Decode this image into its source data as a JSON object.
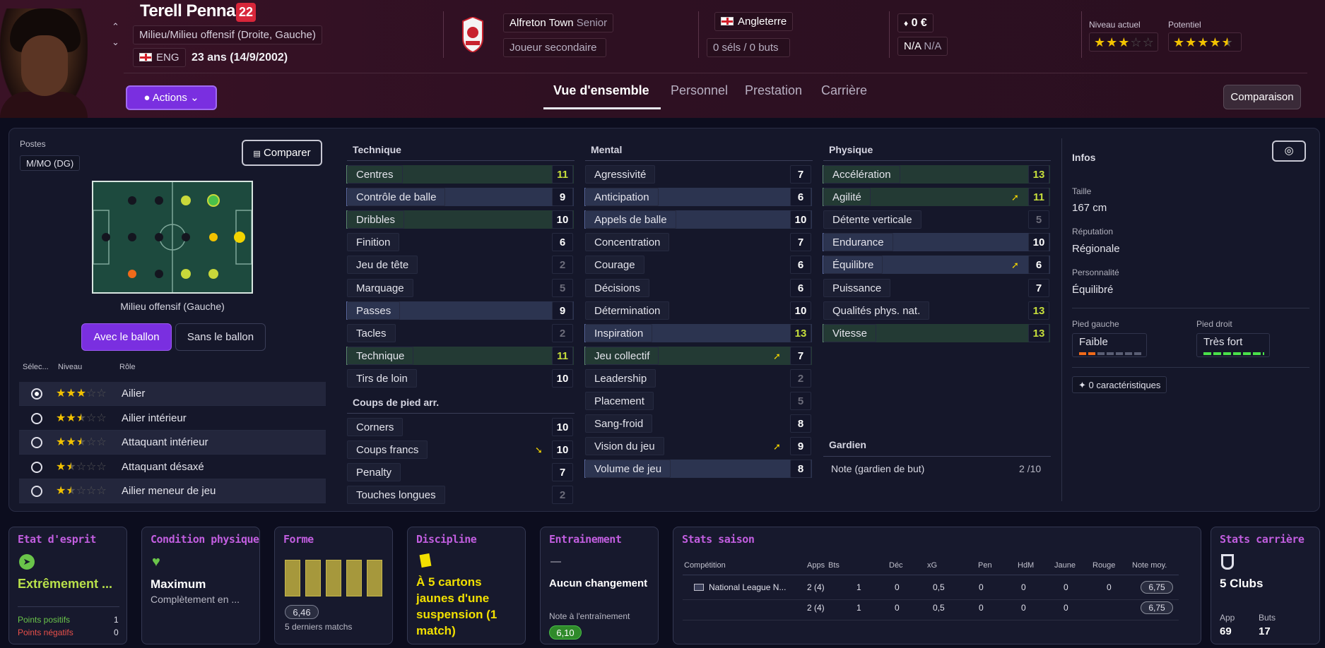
{
  "header": {
    "name": "Terell Pennant",
    "number": "22",
    "position": "Milieu/Milieu offensif (Droite, Gauche)",
    "nation": "ENG",
    "age": "23 ans (14/9/2002)",
    "club": "Alfreton Town",
    "club_level": "Senior",
    "squad_status": "Joueur secondaire",
    "country": "Angleterre",
    "caps": "0 séls / 0 buts",
    "value": "0 €",
    "wage_a": "N/A",
    "wage_b": "N/A",
    "current_label": "Niveau actuel",
    "potential_label": "Potentiel",
    "current_stars": 3,
    "potential_stars": 4.5,
    "actions": "Actions",
    "compare_btn": "Comparaison",
    "tabs": [
      "Vue d'ensemble",
      "Personnel",
      "Prestation",
      "Carrière"
    ]
  },
  "left": {
    "postes_label": "Postes",
    "postes_value": "M/MO (DG)",
    "compare": "Comparer",
    "role_caption": "Milieu offensif (Gauche)",
    "with_ball": "Avec le ballon",
    "without_ball": "Sans le ballon",
    "col_select": "Sélec...",
    "col_level": "Niveau",
    "col_role": "Rôle",
    "roles": [
      {
        "name": "Ailier",
        "stars": 3,
        "selected": true
      },
      {
        "name": "Ailier intérieur",
        "stars": 2.5,
        "selected": false
      },
      {
        "name": "Attaquant intérieur",
        "stars": 2.5,
        "selected": false
      },
      {
        "name": "Attaquant désaxé",
        "stars": 1.5,
        "selected": false
      },
      {
        "name": "Ailier meneur de jeu",
        "stars": 1.5,
        "selected": false
      }
    ]
  },
  "technique": {
    "label": "Technique",
    "rows": [
      {
        "n": "Centres",
        "v": "11",
        "hl": "green",
        "c": "#c7df3b"
      },
      {
        "n": "Contrôle de balle",
        "v": "9",
        "hl": "blue",
        "c": "#ffffff"
      },
      {
        "n": "Dribbles",
        "v": "10",
        "hl": "green",
        "c": "#ffffff"
      },
      {
        "n": "Finition",
        "v": "6",
        "hl": "",
        "c": "#ffffff"
      },
      {
        "n": "Jeu de tête",
        "v": "2",
        "hl": "",
        "c": "#6c6c7a"
      },
      {
        "n": "Marquage",
        "v": "5",
        "hl": "",
        "c": "#6c6c7a"
      },
      {
        "n": "Passes",
        "v": "9",
        "hl": "blue",
        "c": "#ffffff"
      },
      {
        "n": "Tacles",
        "v": "2",
        "hl": "",
        "c": "#6c6c7a"
      },
      {
        "n": "Technique",
        "v": "11",
        "hl": "green",
        "c": "#c7df3b"
      },
      {
        "n": "Tirs de loin",
        "v": "10",
        "hl": "",
        "c": "#ffffff"
      }
    ]
  },
  "setpieces": {
    "label": "Coups de pied arr.",
    "rows": [
      {
        "n": "Corners",
        "v": "10",
        "hl": "",
        "c": "#ffffff"
      },
      {
        "n": "Coups francs",
        "v": "10",
        "hl": "",
        "c": "#ffffff",
        "arrow": "down"
      },
      {
        "n": "Penalty",
        "v": "7",
        "hl": "",
        "c": "#ffffff"
      },
      {
        "n": "Touches longues",
        "v": "2",
        "hl": "",
        "c": "#6c6c7a"
      }
    ]
  },
  "mental": {
    "label": "Mental",
    "rows": [
      {
        "n": "Agressivité",
        "v": "7",
        "hl": "",
        "c": "#ffffff"
      },
      {
        "n": "Anticipation",
        "v": "6",
        "hl": "blue",
        "c": "#ffffff"
      },
      {
        "n": "Appels de balle",
        "v": "10",
        "hl": "blue",
        "c": "#ffffff"
      },
      {
        "n": "Concentration",
        "v": "7",
        "hl": "",
        "c": "#ffffff"
      },
      {
        "n": "Courage",
        "v": "6",
        "hl": "",
        "c": "#ffffff"
      },
      {
        "n": "Décisions",
        "v": "6",
        "hl": "",
        "c": "#ffffff"
      },
      {
        "n": "Détermination",
        "v": "10",
        "hl": "",
        "c": "#ffffff"
      },
      {
        "n": "Inspiration",
        "v": "13",
        "hl": "blue",
        "c": "#c7df3b"
      },
      {
        "n": "Jeu collectif",
        "v": "7",
        "hl": "green",
        "c": "#ffffff",
        "arrow": "up"
      },
      {
        "n": "Leadership",
        "v": "2",
        "hl": "",
        "c": "#6c6c7a"
      },
      {
        "n": "Placement",
        "v": "5",
        "hl": "",
        "c": "#6c6c7a"
      },
      {
        "n": "Sang-froid",
        "v": "8",
        "hl": "",
        "c": "#ffffff"
      },
      {
        "n": "Vision du jeu",
        "v": "9",
        "hl": "",
        "c": "#ffffff",
        "arrow": "up"
      },
      {
        "n": "Volume de jeu",
        "v": "8",
        "hl": "blue",
        "c": "#ffffff"
      }
    ]
  },
  "physique": {
    "label": "Physique",
    "rows": [
      {
        "n": "Accélération",
        "v": "13",
        "hl": "green",
        "c": "#c7df3b"
      },
      {
        "n": "Agilité",
        "v": "11",
        "hl": "green",
        "c": "#c7df3b",
        "arrow": "up"
      },
      {
        "n": "Détente verticale",
        "v": "5",
        "hl": "",
        "c": "#6c6c7a"
      },
      {
        "n": "Endurance",
        "v": "10",
        "hl": "blue",
        "c": "#ffffff"
      },
      {
        "n": "Équilibre",
        "v": "6",
        "hl": "blue",
        "c": "#ffffff",
        "arrow": "up"
      },
      {
        "n": "Puissance",
        "v": "7",
        "hl": "",
        "c": "#ffffff"
      },
      {
        "n": "Qualités phys. nat.",
        "v": "13",
        "hl": "",
        "c": "#c7df3b"
      },
      {
        "n": "Vitesse",
        "v": "13",
        "hl": "green",
        "c": "#c7df3b"
      }
    ]
  },
  "goalkeeper": {
    "label": "Gardien",
    "note_label": "Note (gardien de but)",
    "note_value": "2 /10"
  },
  "infos": {
    "title": "Infos",
    "height_label": "Taille",
    "height": "167 cm",
    "rep_label": "Réputation",
    "rep": "Régionale",
    "pers_label": "Personnalité",
    "pers": "Équilibré",
    "left_label": "Pied gauche",
    "left": "Faible",
    "right_label": "Pied droit",
    "right": "Très fort",
    "traits": "0 caractéristiques"
  },
  "cards": {
    "morale": {
      "title": "Etat d'esprit",
      "value": "Extrêmement ...",
      "pos": "Points positifs",
      "pos_v": "1",
      "neg": "Points négatifs",
      "neg_v": "0"
    },
    "condition": {
      "title": "Condition physique",
      "value": "Maximum",
      "sub": "Complètement en ..."
    },
    "form": {
      "title": "Forme",
      "rating": "6,46",
      "sub": "5 derniers matchs"
    },
    "discipline": {
      "title": "Discipline",
      "value": "À 5 cartons jaunes d'une suspension (1 match)"
    },
    "training": {
      "title": "Entrainement",
      "dash": "—",
      "value": "Aucun changement",
      "sub": "Note à l'entraînement",
      "rating": "6,10"
    },
    "season": {
      "title": "Stats saison",
      "headers": [
        "Compétition",
        "Apps",
        "Bts",
        "Déc",
        "xG",
        "Pen",
        "HdM",
        "Jaune",
        "Rouge",
        "Note moy."
      ],
      "rows": [
        {
          "comp": "National League N...",
          "apps": "2 (4)",
          "bts": "1",
          "dec": "0",
          "xg": "0,5",
          "pen": "0",
          "hdm": "0",
          "jaune": "0",
          "rouge": "0",
          "note": "6,75"
        },
        {
          "comp": "",
          "apps": "2 (4)",
          "bts": "1",
          "dec": "0",
          "xg": "0,5",
          "pen": "0",
          "hdm": "0",
          "jaune": "0",
          "rouge": "",
          "note": "6,75"
        }
      ]
    },
    "career": {
      "title": "Stats carrière",
      "value": "5 Clubs",
      "app_label": "App",
      "app": "69",
      "goals_label": "Buts",
      "goals": "17"
    }
  },
  "colors": {
    "accent": "#7a2fe0",
    "green": "#c7df3b",
    "card_title": "#c25ee0"
  }
}
